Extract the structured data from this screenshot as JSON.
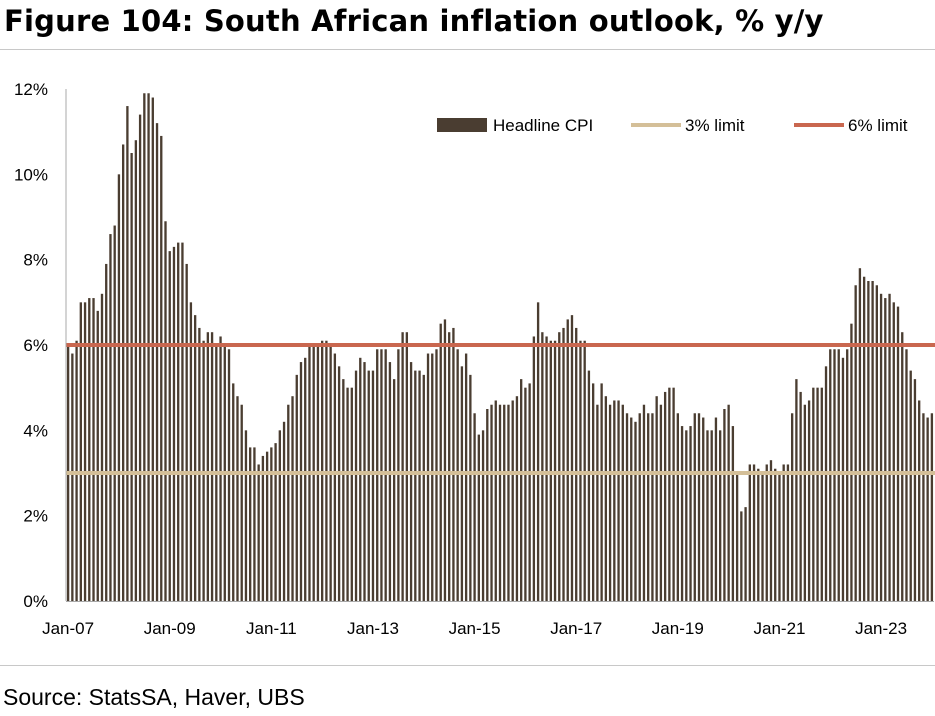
{
  "page": {
    "title": "Figure 104: South African inflation outlook, % y/y",
    "source": "Source: StatsSA, Haver, UBS"
  },
  "chart_data": {
    "type": "bar",
    "title": "",
    "xlabel": "",
    "ylabel": "",
    "ylim": [
      0,
      12
    ],
    "yticks": [
      "0%",
      "2%",
      "4%",
      "6%",
      "8%",
      "10%",
      "12%"
    ],
    "xticks": [
      "Jan-07",
      "Jan-09",
      "Jan-11",
      "Jan-13",
      "Jan-15",
      "Jan-17",
      "Jan-19",
      "Jan-21",
      "Jan-23"
    ],
    "grid": false,
    "legend_position": "top-right",
    "start": "Jan-07",
    "series": [
      {
        "name": "Headline CPI",
        "color": "#4a3d31",
        "values": [
          6.0,
          5.8,
          6.1,
          7.0,
          7.0,
          7.1,
          7.1,
          6.8,
          7.2,
          7.9,
          8.6,
          8.8,
          10.0,
          10.7,
          11.6,
          10.5,
          10.8,
          11.4,
          11.9,
          11.9,
          11.8,
          11.2,
          10.9,
          8.9,
          8.2,
          8.3,
          8.4,
          8.4,
          7.9,
          7.0,
          6.7,
          6.4,
          6.1,
          6.3,
          6.3,
          6.0,
          6.2,
          6.0,
          5.9,
          5.1,
          4.8,
          4.6,
          4.0,
          3.6,
          3.6,
          3.2,
          3.4,
          3.5,
          3.6,
          3.7,
          4.0,
          4.2,
          4.6,
          4.8,
          5.3,
          5.6,
          5.7,
          6.0,
          6.0,
          6.0,
          6.1,
          6.1,
          6.0,
          5.8,
          5.5,
          5.2,
          5.0,
          5.0,
          5.4,
          5.7,
          5.6,
          5.4,
          5.4,
          5.9,
          5.9,
          5.9,
          5.6,
          5.2,
          5.9,
          6.3,
          6.3,
          5.6,
          5.4,
          5.4,
          5.3,
          5.8,
          5.8,
          5.9,
          6.5,
          6.6,
          6.3,
          6.4,
          5.9,
          5.5,
          5.8,
          5.3,
          4.4,
          3.9,
          4.0,
          4.5,
          4.6,
          4.7,
          4.6,
          4.6,
          4.6,
          4.7,
          4.8,
          5.2,
          5.0,
          5.1,
          6.2,
          7.0,
          6.3,
          6.2,
          6.1,
          6.1,
          6.3,
          6.4,
          6.6,
          6.7,
          6.4,
          6.1,
          6.1,
          5.4,
          5.1,
          4.6,
          5.1,
          4.8,
          4.6,
          4.7,
          4.7,
          4.6,
          4.4,
          4.3,
          4.2,
          4.4,
          4.6,
          4.4,
          4.4,
          4.8,
          4.6,
          4.9,
          5.0,
          5.0,
          4.4,
          4.1,
          4.0,
          4.1,
          4.4,
          4.4,
          4.3,
          4.0,
          4.0,
          4.3,
          4.0,
          4.5,
          4.6,
          4.1,
          3.0,
          2.1,
          2.2,
          3.2,
          3.2,
          3.1,
          3.0,
          3.2,
          3.3,
          3.1,
          3.0,
          3.2,
          3.2,
          4.4,
          5.2,
          4.9,
          4.6,
          4.7,
          5.0,
          5.0,
          5.0,
          5.5,
          5.9,
          5.9,
          5.9,
          5.7,
          5.9,
          6.5,
          7.4,
          7.8,
          7.6,
          7.5,
          7.5,
          7.4,
          7.2,
          7.1,
          7.2,
          7.0,
          6.9,
          6.3,
          5.9,
          5.4,
          5.2,
          4.7,
          4.4,
          4.3,
          4.4
        ]
      },
      {
        "name": "3% limit",
        "color": "#d4bf98",
        "value": 3
      },
      {
        "name": "6% limit",
        "color": "#c9674f",
        "value": 6
      }
    ]
  }
}
